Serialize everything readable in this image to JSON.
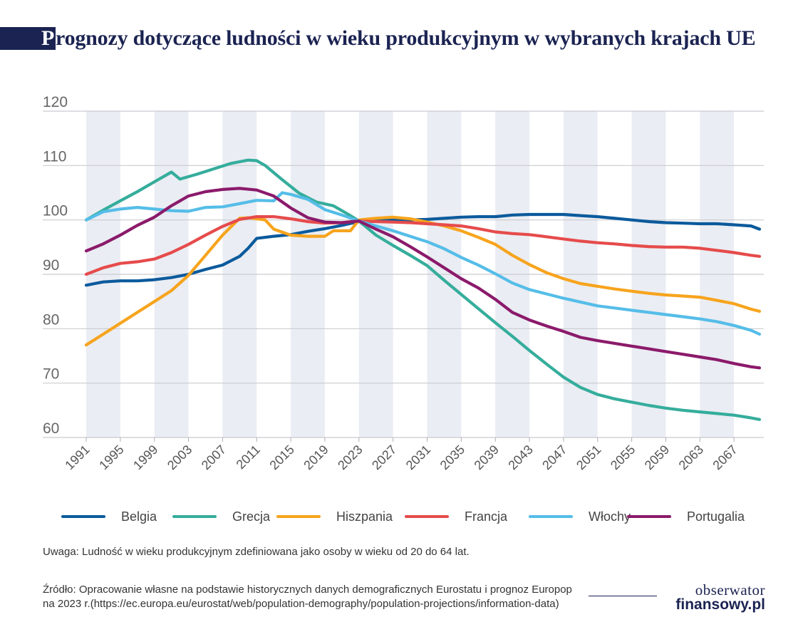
{
  "title": {
    "first_letter": "P",
    "rest": "rognozy dotyczące ludności w wieku produkcyjnym w wybranych krajach UE"
  },
  "note": "Uwaga: Ludność w wieku produkcyjnym zdefiniowana jako osoby w wieku od 20 do 64 lat.",
  "source_lines": [
    "Źródło: Opracowanie własne na podstawie historycznych danych demograficznych Eurostatu i prognoz Europop",
    "na 2023 r.(https://ec.europa.eu/eurostat/web/population-demography/population-projections/information-data)"
  ],
  "logo": {
    "top": "obserwator",
    "bottom": "finansowy.pl"
  },
  "chart_data": {
    "type": "line",
    "title": "Prognozy dotyczące ludności w wieku produkcyjnym w wybranych krajach UE",
    "xlabel": "",
    "ylabel": "",
    "ylim": [
      60,
      120
    ],
    "yticks": [
      60,
      70,
      80,
      90,
      100,
      110,
      120
    ],
    "xlim": [
      1991,
      2070
    ],
    "xticks": [
      1991,
      1995,
      1999,
      2003,
      2007,
      2011,
      2015,
      2019,
      2023,
      2027,
      2031,
      2035,
      2039,
      2043,
      2047,
      2051,
      2055,
      2059,
      2063,
      2067
    ],
    "shaded_bands": [
      [
        1991,
        1995
      ],
      [
        1999,
        2003
      ],
      [
        2007,
        2011
      ],
      [
        2015,
        2019
      ],
      [
        2023,
        2027
      ],
      [
        2031,
        2035
      ],
      [
        2039,
        2043
      ],
      [
        2047,
        2051
      ],
      [
        2055,
        2059
      ],
      [
        2063,
        2067
      ]
    ],
    "grid": "horizontal",
    "legend_position": "bottom",
    "series": [
      {
        "name": "Belgia",
        "color": "#0b5a9c",
        "x": [
          1991,
          1993,
          1995,
          1997,
          1999,
          2001,
          2003,
          2005,
          2007,
          2009,
          2010,
          2011,
          2013,
          2015,
          2017,
          2019,
          2021,
          2023,
          2025,
          2027,
          2029,
          2031,
          2033,
          2035,
          2037,
          2039,
          2041,
          2043,
          2045,
          2047,
          2049,
          2051,
          2053,
          2055,
          2057,
          2059,
          2061,
          2063,
          2065,
          2067,
          2069,
          2070
        ],
        "y": [
          88.0,
          88.6,
          88.8,
          88.8,
          89.0,
          89.4,
          90.0,
          90.9,
          91.7,
          93.3,
          94.8,
          96.6,
          97.0,
          97.3,
          97.9,
          98.4,
          99.0,
          99.7,
          100.0,
          100.0,
          100.0,
          100.1,
          100.3,
          100.5,
          100.6,
          100.6,
          100.9,
          101.0,
          101.0,
          101.0,
          100.8,
          100.6,
          100.3,
          100.0,
          99.7,
          99.5,
          99.4,
          99.3,
          99.3,
          99.1,
          98.9,
          98.3
        ]
      },
      {
        "name": "Grecja",
        "color": "#35ad9c",
        "x": [
          1991,
          1993,
          1995,
          1997,
          1999,
          2001,
          2002,
          2004,
          2006,
          2008,
          2010,
          2011,
          2012,
          2014,
          2016,
          2018,
          2020,
          2022,
          2023,
          2025,
          2027,
          2029,
          2031,
          2033,
          2035,
          2037,
          2039,
          2041,
          2043,
          2045,
          2047,
          2049,
          2051,
          2053,
          2055,
          2057,
          2059,
          2061,
          2063,
          2065,
          2067,
          2069,
          2070
        ],
        "y": [
          100.0,
          101.8,
          103.5,
          105.2,
          107.0,
          108.8,
          107.5,
          108.4,
          109.4,
          110.4,
          111.0,
          110.9,
          110.0,
          107.4,
          104.9,
          103.3,
          102.6,
          100.8,
          99.8,
          97.2,
          95.3,
          93.5,
          91.6,
          88.9,
          86.3,
          83.7,
          81.1,
          78.6,
          76.0,
          73.5,
          71.1,
          69.2,
          67.9,
          67.1,
          66.5,
          65.9,
          65.4,
          65.0,
          64.7,
          64.4,
          64.1,
          63.6,
          63.3
        ]
      },
      {
        "name": "Hiszpania",
        "color": "#f7a41d",
        "x": [
          1991,
          1993,
          1995,
          1997,
          1999,
          2001,
          2003,
          2005,
          2007,
          2009,
          2010,
          2011,
          2012,
          2013,
          2015,
          2017,
          2019,
          2020,
          2021,
          2022,
          2023,
          2025,
          2027,
          2029,
          2031,
          2033,
          2035,
          2037,
          2039,
          2041,
          2043,
          2045,
          2047,
          2049,
          2051,
          2053,
          2055,
          2057,
          2059,
          2061,
          2063,
          2065,
          2067,
          2069,
          2070
        ],
        "y": [
          77.0,
          79.0,
          81.0,
          83.0,
          85.0,
          87.0,
          89.8,
          93.5,
          97.2,
          100.3,
          100.4,
          100.2,
          100.0,
          98.3,
          97.2,
          97.0,
          97.0,
          98.0,
          98.0,
          98.0,
          100.0,
          100.3,
          100.5,
          100.2,
          99.6,
          98.9,
          98.0,
          96.8,
          95.5,
          93.5,
          91.8,
          90.3,
          89.2,
          88.3,
          87.8,
          87.3,
          86.9,
          86.5,
          86.2,
          86.0,
          85.8,
          85.2,
          84.6,
          83.6,
          83.2
        ]
      },
      {
        "name": "Francja",
        "color": "#e64b4b",
        "x": [
          1991,
          1993,
          1995,
          1997,
          1999,
          2001,
          2003,
          2005,
          2007,
          2009,
          2011,
          2013,
          2015,
          2017,
          2019,
          2021,
          2023,
          2025,
          2027,
          2029,
          2031,
          2033,
          2035,
          2037,
          2039,
          2041,
          2043,
          2045,
          2047,
          2049,
          2051,
          2053,
          2055,
          2057,
          2059,
          2061,
          2063,
          2065,
          2067,
          2069,
          2070
        ],
        "y": [
          90.0,
          91.2,
          92.0,
          92.3,
          92.8,
          94.0,
          95.5,
          97.2,
          98.8,
          100.1,
          100.6,
          100.6,
          100.2,
          99.7,
          99.4,
          99.5,
          99.8,
          99.7,
          99.6,
          99.5,
          99.3,
          99.1,
          98.9,
          98.4,
          97.8,
          97.5,
          97.3,
          96.9,
          96.5,
          96.1,
          95.8,
          95.6,
          95.3,
          95.1,
          95.0,
          95.0,
          94.8,
          94.4,
          94.0,
          93.5,
          93.3
        ]
      },
      {
        "name": "Włochy",
        "color": "#55bde8",
        "x": [
          1991,
          1993,
          1995,
          1997,
          1999,
          2001,
          2003,
          2005,
          2007,
          2009,
          2011,
          2013,
          2014,
          2015,
          2017,
          2019,
          2021,
          2023,
          2025,
          2027,
          2029,
          2031,
          2033,
          2035,
          2037,
          2039,
          2041,
          2043,
          2045,
          2047,
          2049,
          2051,
          2053,
          2055,
          2057,
          2059,
          2061,
          2063,
          2065,
          2067,
          2069,
          2070
        ],
        "y": [
          100.0,
          101.5,
          102.0,
          102.3,
          102.0,
          101.7,
          101.6,
          102.3,
          102.4,
          103.0,
          103.6,
          103.5,
          105.0,
          104.7,
          103.8,
          101.9,
          100.9,
          99.8,
          98.9,
          98.0,
          97.0,
          96.0,
          94.7,
          93.1,
          91.7,
          90.1,
          88.4,
          87.2,
          86.4,
          85.6,
          84.9,
          84.2,
          83.8,
          83.4,
          83.0,
          82.6,
          82.2,
          81.8,
          81.3,
          80.6,
          79.7,
          79.0
        ]
      },
      {
        "name": "Portugalia",
        "color": "#8b1a6b",
        "x": [
          1991,
          1993,
          1995,
          1997,
          1999,
          2001,
          2003,
          2005,
          2007,
          2009,
          2011,
          2013,
          2015,
          2017,
          2019,
          2021,
          2023,
          2025,
          2027,
          2029,
          2031,
          2033,
          2035,
          2037,
          2039,
          2041,
          2043,
          2045,
          2047,
          2049,
          2051,
          2053,
          2055,
          2057,
          2059,
          2061,
          2063,
          2065,
          2067,
          2069,
          2070
        ],
        "y": [
          94.3,
          95.6,
          97.2,
          99.0,
          100.5,
          102.6,
          104.4,
          105.2,
          105.6,
          105.8,
          105.5,
          104.4,
          102.2,
          100.4,
          99.6,
          99.5,
          99.8,
          98.3,
          96.9,
          95.1,
          93.2,
          91.2,
          89.2,
          87.5,
          85.4,
          83.0,
          81.6,
          80.5,
          79.5,
          78.4,
          77.8,
          77.3,
          76.8,
          76.3,
          75.8,
          75.3,
          74.8,
          74.3,
          73.6,
          73.0,
          72.8
        ]
      }
    ]
  }
}
